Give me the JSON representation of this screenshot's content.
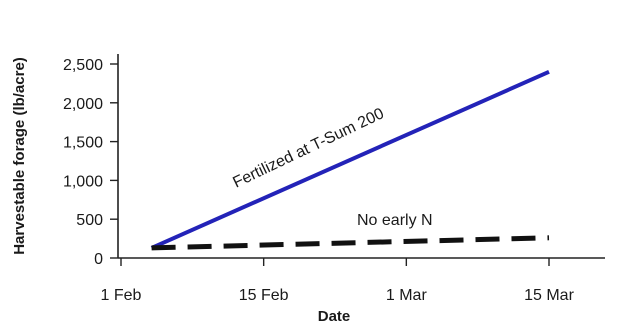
{
  "chart_data": {
    "type": "line",
    "title": "",
    "xlabel": "Date",
    "ylabel": "Harvestable forage (lb/acre)",
    "x_ticks": [
      "1 Feb",
      "15 Feb",
      "1 Mar",
      "15 Mar"
    ],
    "y_ticks": [
      "0",
      "500",
      "1,000",
      "1,500",
      "2,000",
      "2,500"
    ],
    "y_tick_values": [
      0,
      500,
      1000,
      1500,
      2000,
      2500
    ],
    "ylim": [
      0,
      2500
    ],
    "grid": false,
    "legend": "none",
    "series": [
      {
        "name": "Fertilized at T-Sum 200",
        "color": "#2323b8",
        "style": "solid",
        "x": [
          "4 Feb",
          "15 Mar"
        ],
        "y": [
          130,
          2400
        ]
      },
      {
        "name": "No early N",
        "color": "#111111",
        "style": "dashed",
        "x": [
          "4 Feb",
          "15 Mar"
        ],
        "y": [
          130,
          260
        ]
      }
    ],
    "annotations": [
      "Fertilized at T-Sum 200",
      "No early N"
    ]
  }
}
